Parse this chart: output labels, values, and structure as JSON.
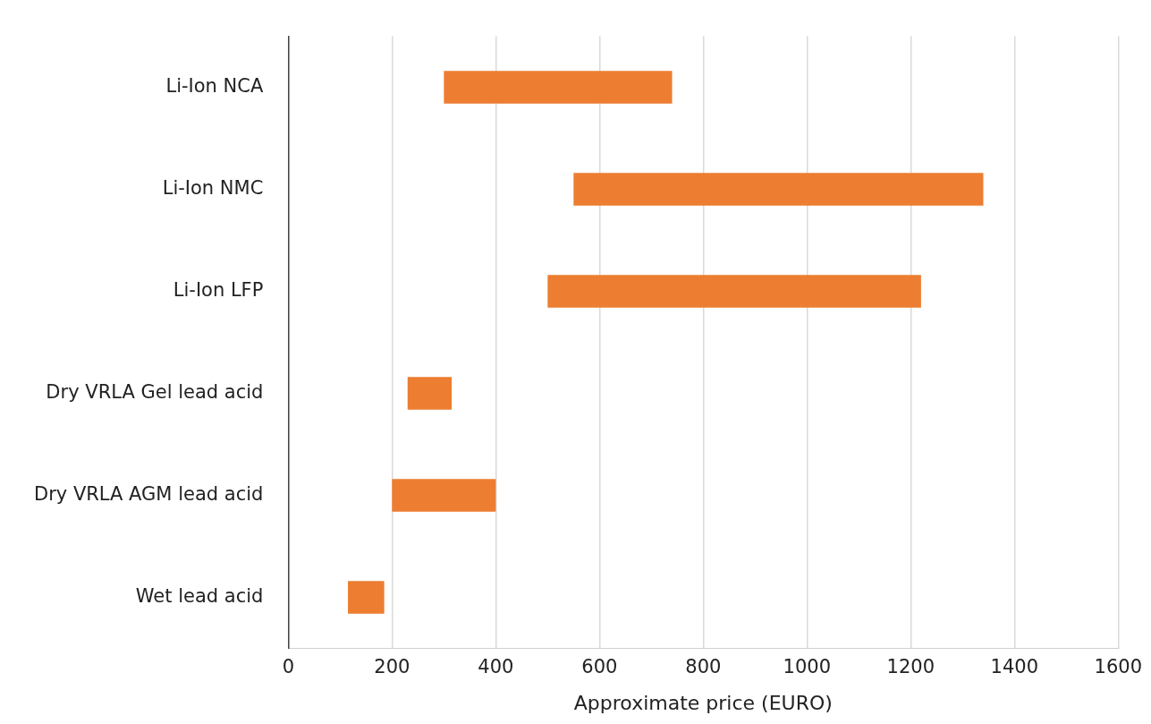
{
  "chart_data": {
    "type": "bar",
    "orientation": "horizontal",
    "xlabel": "Approximate price (EURO)",
    "categories": [
      "Li-Ion NCA",
      "Li-Ion NMC",
      "Li-Ion LFP",
      "Dry VRLA Gel lead acid",
      "Dry VRLA AGM lead acid",
      "Wet lead acid"
    ],
    "base": [
      300,
      550,
      500,
      230,
      200,
      115
    ],
    "values": [
      440,
      790,
      720,
      85,
      200,
      70
    ],
    "color": "#ed7d31",
    "xlim": [
      0,
      1600
    ],
    "xticks": [
      0,
      200,
      400,
      600,
      800,
      1000,
      1200,
      1400,
      1600
    ],
    "grid": "x",
    "legend": false
  }
}
